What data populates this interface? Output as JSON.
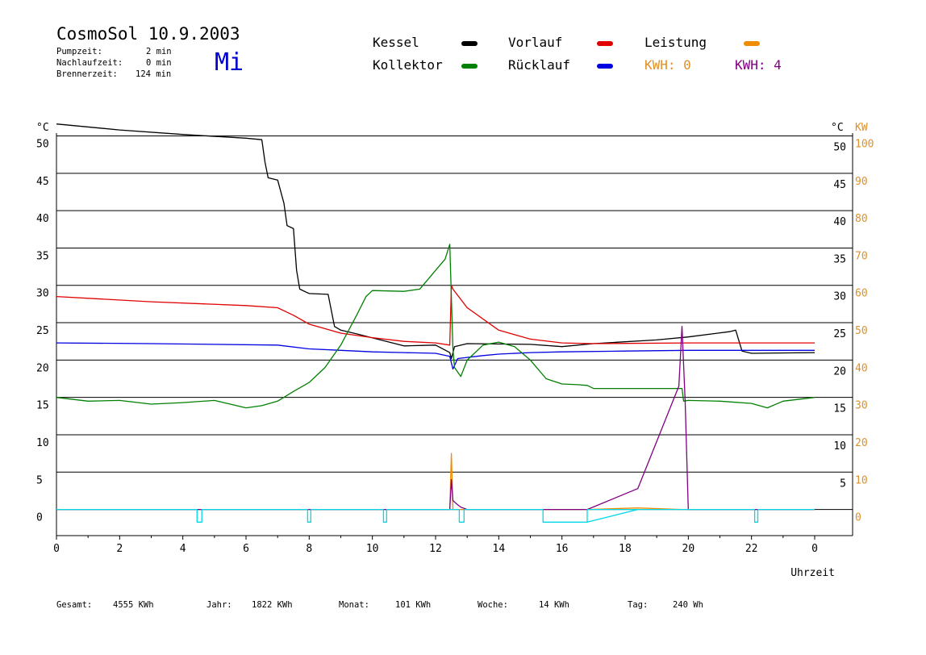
{
  "header": {
    "title": "CosmoSol 10.9.2003",
    "day": "Mi",
    "info": [
      {
        "label": "Pumpzeit:",
        "value": "2 min"
      },
      {
        "label": "Nachlaufzeit:",
        "value": "0 min"
      },
      {
        "label": "Brennerzeit:",
        "value": "124 min"
      }
    ]
  },
  "legend": {
    "kessel": {
      "label": "Kessel",
      "color": "#000000"
    },
    "kollektor": {
      "label": "Kollektor",
      "color": "#008000"
    },
    "vorlauf": {
      "label": "Vorlauf",
      "color": "#e00000"
    },
    "ruecklauf": {
      "label": "Rücklauf",
      "color": "#0000e0"
    },
    "leistung": {
      "label": "Leistung",
      "color": "#f08c00"
    },
    "kwh_orange": {
      "label": "KWH: 0",
      "color": "#e0902a"
    },
    "kwh_purple": {
      "label": "KWH: 4",
      "color": "#800080"
    }
  },
  "chart_data": {
    "type": "line",
    "x_range": [
      0,
      24
    ],
    "x_ticks": [
      "0",
      "2",
      "4",
      "6",
      "8",
      "10",
      "12",
      "14",
      "16",
      "18",
      "20",
      "22",
      "0"
    ],
    "xlabel": "Uhrzeit",
    "y_left_unit": "°C",
    "y_right_unit_c": "°C",
    "y_right_unit_kw": "KW",
    "y_range": [
      -3.5,
      52
    ],
    "y_left_ticks": [
      "0",
      "5",
      "10",
      "15",
      "20",
      "25",
      "30",
      "35",
      "40",
      "45",
      "50"
    ],
    "y_right_c_ticks": [
      "5",
      "10",
      "15",
      "20",
      "25",
      "30",
      "35",
      "40",
      "45",
      "50"
    ],
    "y_right_kw_ticks": [
      "0",
      "10",
      "20",
      "30",
      "40",
      "50",
      "60",
      "70",
      "80",
      "90",
      "100"
    ],
    "series": [
      {
        "key": "kessel",
        "color": "#000000",
        "x": [
          0,
          2,
          4,
          6,
          6.5,
          6.6,
          6.7,
          7.0,
          7.2,
          7.3,
          7.5,
          7.6,
          7.7,
          8.0,
          8.6,
          8.8,
          9.0,
          9.5,
          11.0,
          12.0,
          12.45,
          12.5,
          12.6,
          13.0,
          15.0,
          16.0,
          17.0,
          19.0,
          20.0,
          21.3,
          21.5,
          21.7,
          22.0,
          24.0
        ],
        "y": [
          51.6,
          50.8,
          50.2,
          49.7,
          49.5,
          46.5,
          44.4,
          44.1,
          41.0,
          38.0,
          37.6,
          32.0,
          29.5,
          28.9,
          28.8,
          24.5,
          24.0,
          23.5,
          21.9,
          22.0,
          21.0,
          20.2,
          21.8,
          22.2,
          22.1,
          21.8,
          22.2,
          22.7,
          23.1,
          23.8,
          24.0,
          21.2,
          20.9,
          21.0
        ]
      },
      {
        "key": "vorlauf",
        "color": "#e00000",
        "x": [
          0,
          3,
          6,
          7,
          7.5,
          8,
          9,
          10,
          11,
          12,
          12.45,
          12.5,
          12.55,
          13,
          14,
          15,
          16,
          17,
          20,
          22,
          24
        ],
        "y": [
          28.5,
          27.8,
          27.3,
          27.0,
          26.0,
          24.8,
          23.6,
          23.0,
          22.5,
          22.3,
          22.0,
          30.0,
          29.5,
          27.0,
          24.0,
          22.8,
          22.3,
          22.2,
          22.3,
          22.3,
          22.3
        ]
      },
      {
        "key": "ruecklauf",
        "color": "#0000e0",
        "x": [
          0,
          3,
          7,
          8,
          9,
          10,
          11,
          12,
          12.45,
          12.55,
          12.7,
          13.5,
          14,
          15,
          16,
          18,
          20,
          22,
          24
        ],
        "y": [
          22.3,
          22.2,
          22.0,
          21.5,
          21.3,
          21.1,
          21.0,
          20.9,
          20.5,
          18.8,
          20.2,
          20.6,
          20.8,
          21.0,
          21.1,
          21.2,
          21.3,
          21.3,
          21.3
        ]
      },
      {
        "key": "kollektor",
        "color": "#008000",
        "x": [
          0,
          1,
          2,
          3,
          4,
          5,
          6,
          6.5,
          7,
          7.5,
          8,
          8.5,
          9,
          9.5,
          9.8,
          10,
          11,
          11.5,
          12,
          12.3,
          12.45,
          12.55,
          12.6,
          12.8,
          13.0,
          13.5,
          14,
          14.5,
          15,
          15.5,
          16,
          16.5,
          16.8,
          17,
          19.0,
          19.3,
          19.5,
          19.8,
          19.85,
          20,
          21,
          22,
          22.5,
          23,
          24
        ],
        "y": [
          15.0,
          14.5,
          14.6,
          14.1,
          14.3,
          14.6,
          13.6,
          13.9,
          14.5,
          15.8,
          17.0,
          19.0,
          22.0,
          26.0,
          28.5,
          29.3,
          29.2,
          29.5,
          32.0,
          33.5,
          35.5,
          21.5,
          19.0,
          17.8,
          20.0,
          22.0,
          22.4,
          21.8,
          20.0,
          17.5,
          16.8,
          16.7,
          16.6,
          16.2,
          16.2,
          16.2,
          16.2,
          16.2,
          14.5,
          14.6,
          14.5,
          14.2,
          13.6,
          14.5,
          15.0
        ]
      },
      {
        "key": "leistung",
        "color": "#f08c00",
        "x": [
          0,
          12.45,
          12.5,
          12.55,
          13,
          16.8,
          18.4,
          19.8,
          24
        ],
        "y": [
          0,
          0,
          7.5,
          0,
          0,
          0,
          0.2,
          0,
          0
        ]
      },
      {
        "key": "kwh_purple",
        "color": "#800080",
        "x": [
          0,
          12.45,
          12.5,
          12.55,
          12.65,
          12.8,
          13,
          16.8,
          18.4,
          19.7,
          19.8,
          19.9,
          20.0,
          24
        ],
        "y": [
          0,
          0,
          4.0,
          1.2,
          0.8,
          0.3,
          0,
          0,
          2.8,
          16.5,
          24.5,
          14.5,
          0,
          0
        ]
      },
      {
        "key": "pump",
        "color": "#00d8e8",
        "x": [
          0,
          4.45,
          4.45,
          4.6,
          4.6,
          7.95,
          7.95,
          8.05,
          8.05,
          10.35,
          10.35,
          10.45,
          10.45,
          12.75,
          12.75,
          12.9,
          12.9,
          15.4,
          15.4,
          16.8,
          16.8,
          18.4,
          16.8,
          16.8,
          22.1,
          22.1,
          22.2,
          22.2,
          24
        ],
        "y": [
          0,
          0,
          -1.7,
          -1.7,
          0,
          0,
          -1.7,
          -1.7,
          0,
          0,
          -1.7,
          -1.7,
          0,
          0,
          -1.7,
          -1.7,
          0,
          0,
          -1.7,
          -1.7,
          0,
          0,
          -1.7,
          0,
          0,
          -1.7,
          -1.7,
          0,
          0
        ]
      }
    ]
  },
  "footer": [
    {
      "label": "Gesamt:",
      "value": "4555 KWh"
    },
    {
      "label": "Jahr:",
      "value": "1822 KWh"
    },
    {
      "label": "Monat:",
      "value": "101 KWh"
    },
    {
      "label": "Woche:",
      "value": "14 KWh"
    },
    {
      "label": "Tag:",
      "value": "240 Wh"
    }
  ]
}
